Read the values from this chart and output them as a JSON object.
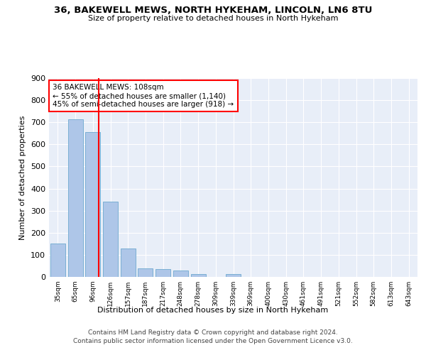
{
  "title1": "36, BAKEWELL MEWS, NORTH HYKEHAM, LINCOLN, LN6 8TU",
  "title2": "Size of property relative to detached houses in North Hykeham",
  "xlabel": "Distribution of detached houses by size in North Hykeham",
  "ylabel": "Number of detached properties",
  "footnote1": "Contains HM Land Registry data © Crown copyright and database right 2024.",
  "footnote2": "Contains public sector information licensed under the Open Government Licence v3.0.",
  "bin_labels": [
    "35sqm",
    "65sqm",
    "96sqm",
    "126sqm",
    "157sqm",
    "187sqm",
    "217sqm",
    "248sqm",
    "278sqm",
    "309sqm",
    "339sqm",
    "369sqm",
    "400sqm",
    "430sqm",
    "461sqm",
    "491sqm",
    "521sqm",
    "552sqm",
    "582sqm",
    "613sqm",
    "643sqm"
  ],
  "bar_values": [
    150,
    715,
    655,
    340,
    130,
    40,
    35,
    28,
    12,
    0,
    12,
    0,
    0,
    0,
    0,
    0,
    0,
    0,
    0,
    0,
    0
  ],
  "bar_color": "#AEC6E8",
  "bar_edge_color": "#7AAFD4",
  "red_line_x": 2.33,
  "annotation_text": "36 BAKEWELL MEWS: 108sqm\n← 55% of detached houses are smaller (1,140)\n45% of semi-detached houses are larger (918) →",
  "ylim": [
    0,
    900
  ],
  "yticks": [
    0,
    100,
    200,
    300,
    400,
    500,
    600,
    700,
    800,
    900
  ],
  "background_color": "#E8EEF8",
  "plot_bg_color": "#E8EEF8"
}
